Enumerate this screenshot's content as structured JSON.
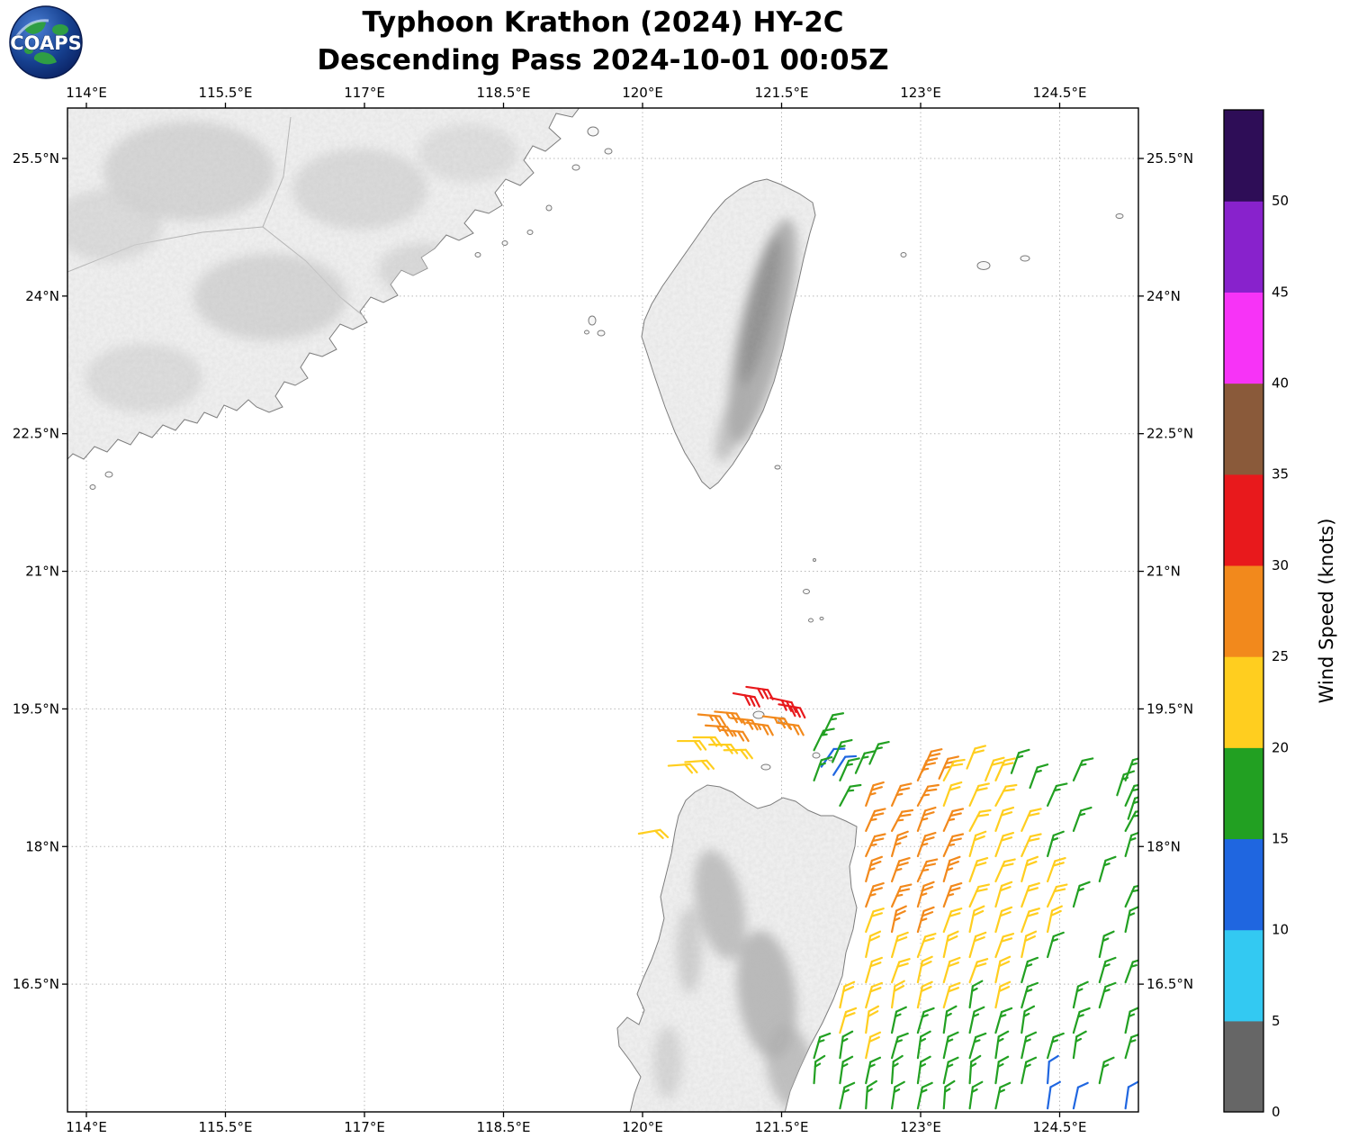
{
  "header": {
    "title_line1": "Typhoon Krathon (2024) HY-2C",
    "title_line2": "Descending Pass 2024-10-01 00:05Z",
    "logo_text": "COAPS"
  },
  "chart_data": {
    "type": "scatter",
    "subtype": "satellite-scatterometer-wind-barb-map",
    "title": "Typhoon Krathon (2024) HY-2C",
    "subtitle": "Descending Pass 2024-10-01 00:05Z",
    "grid": true,
    "x_axis": {
      "kind": "longitude",
      "range": [
        113.8,
        125.35
      ],
      "ticks": [
        {
          "value": 114,
          "label": "114°E"
        },
        {
          "value": 115.5,
          "label": "115.5°E"
        },
        {
          "value": 117,
          "label": "117°E"
        },
        {
          "value": 118.5,
          "label": "118.5°E"
        },
        {
          "value": 120,
          "label": "120°E"
        },
        {
          "value": 121.5,
          "label": "121.5°E"
        },
        {
          "value": 123,
          "label": "123°E"
        },
        {
          "value": 124.5,
          "label": "124.5°E"
        }
      ]
    },
    "y_axis": {
      "kind": "latitude",
      "range": [
        15.11,
        26.05
      ],
      "ticks": [
        {
          "value": 25.5,
          "label": "25.5°N"
        },
        {
          "value": 24,
          "label": "24°N"
        },
        {
          "value": 22.5,
          "label": "22.5°N"
        },
        {
          "value": 21,
          "label": "21°N"
        },
        {
          "value": 19.5,
          "label": "19.5°N"
        },
        {
          "value": 18,
          "label": "18°N"
        },
        {
          "value": 16.5,
          "label": "16.5°N"
        }
      ]
    },
    "colorbar": {
      "label": "Wind Speed (knots)",
      "min": 0,
      "max": 55,
      "tick_values": [
        0,
        5,
        10,
        15,
        20,
        25,
        30,
        35,
        40,
        45,
        50
      ],
      "colors_bottom_to_top": [
        "#666666",
        "#33c9f2",
        "#1f66e0",
        "#22a022",
        "#ffce1f",
        "#f2891c",
        "#e8191c",
        "#8a5a3a",
        "#f733f7",
        "#8822cc",
        "#2e0d57"
      ]
    },
    "wind": {
      "speed_codes": {
        "B": 12,
        "G": 17,
        "Y": 22,
        "O": 27,
        "R": 32
      },
      "code_colors": {
        "B": "#1f66e0",
        "G": "#22a022",
        "Y": "#ffce1f",
        "O": "#f2891c",
        "R": "#e8191c"
      },
      "barbs": [
        [
          120.98,
          19.67,
          "R",
          100
        ],
        [
          121.12,
          19.74,
          "R",
          98
        ],
        [
          121.38,
          19.62,
          "R",
          102
        ],
        [
          121.47,
          19.55,
          "R",
          100
        ],
        [
          120.6,
          19.44,
          "O",
          95
        ],
        [
          120.78,
          19.47,
          "O",
          95
        ],
        [
          120.95,
          19.4,
          "O",
          96
        ],
        [
          121.12,
          19.35,
          "O",
          98
        ],
        [
          121.3,
          19.42,
          "O",
          97
        ],
        [
          121.45,
          19.35,
          "O",
          98
        ],
        [
          120.68,
          19.32,
          "O",
          94
        ],
        [
          120.85,
          19.27,
          "O",
          95
        ],
        [
          120.38,
          19.15,
          "Y",
          90
        ],
        [
          120.55,
          19.19,
          "Y",
          90
        ],
        [
          120.72,
          19.11,
          "Y",
          90
        ],
        [
          120.88,
          19.05,
          "Y",
          89
        ],
        [
          120.28,
          18.88,
          "Y",
          86
        ],
        [
          120.46,
          18.92,
          "Y",
          86
        ],
        [
          119.96,
          18.14,
          "Y",
          80
        ],
        [
          121.93,
          18.87,
          "B",
          35
        ],
        [
          122.06,
          18.78,
          "B",
          33
        ],
        [
          121.85,
          19.05,
          "G",
          26
        ],
        [
          121.95,
          19.22,
          "G",
          26
        ],
        [
          122.05,
          18.92,
          "G",
          24
        ],
        [
          122.3,
          18.8,
          "G",
          24
        ],
        [
          122.45,
          18.9,
          "G",
          24
        ],
        [
          123.02,
          18.82,
          "O",
          24
        ],
        [
          123.2,
          18.74,
          "O",
          24
        ],
        [
          123.5,
          18.85,
          "Y",
          22
        ],
        [
          123.7,
          18.72,
          "Y",
          22
        ],
        [
          123.98,
          18.8,
          "G",
          20
        ],
        [
          124.18,
          18.64,
          "G",
          20
        ],
        [
          125.12,
          18.56,
          "G",
          18
        ],
        [
          125.24,
          18.3,
          "G",
          18
        ]
      ],
      "grid_barbs": {
        "lon_start": 121.85,
        "lon_step": 0.28,
        "rows": [
          {
            "lat": 18.72,
            "dir": 24,
            "cells": "GG..OY.Y..G.G"
          },
          {
            "lat": 18.445,
            "dir": 24,
            "cells": ".GOOOYYY.G..G"
          },
          {
            "lat": 18.17,
            "dir": 24,
            "cells": "..OOOOYYY.G.G"
          },
          {
            "lat": 17.895,
            "dir": 20,
            "cells": "..OOOOYYYG..G"
          },
          {
            "lat": 17.62,
            "dir": 20,
            "cells": "..OOOOYYYY.G."
          },
          {
            "lat": 17.345,
            "dir": 20,
            "cells": "..OOOOYYYYG.G"
          },
          {
            "lat": 17.07,
            "dir": 16,
            "cells": "..YOOYYYYY..G"
          },
          {
            "lat": 16.795,
            "dir": 16,
            "cells": "..YYYYYYYG.G."
          },
          {
            "lat": 16.52,
            "dir": 16,
            "cells": "..YYYYYYG..GG"
          },
          {
            "lat": 16.245,
            "dir": 12,
            "cells": ".YYYYYGYG.GG."
          },
          {
            "lat": 15.97,
            "dir": 12,
            "cells": ".YYGGGGGG.G.G"
          },
          {
            "lat": 15.695,
            "dir": 12,
            "cells": "GGYGGGGGGGG.G"
          },
          {
            "lat": 15.42,
            "dir": 8,
            "cells": "GGGGGGGGGB.G."
          },
          {
            "lat": 15.145,
            "dir": 8,
            "cells": ".GGGGGGG.BB.B"
          }
        ]
      }
    }
  }
}
